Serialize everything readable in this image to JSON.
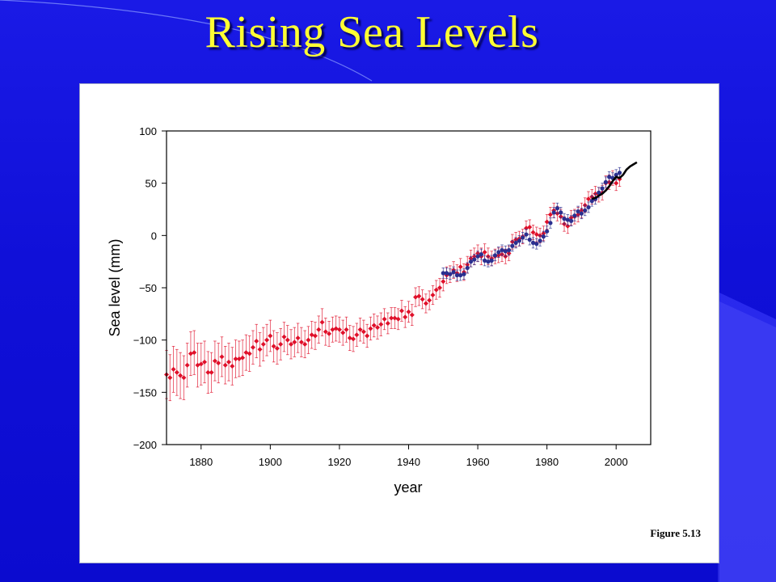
{
  "slide": {
    "title": "Rising Sea Levels",
    "figure_caption": "Figure 5.13"
  },
  "colors": {
    "background": "#1010d8",
    "title": "#ffff33",
    "tide_gauge": "#e0102a",
    "tide_gauge_alt": "#2a2f8f",
    "satellite": "#000000"
  },
  "chart_data": {
    "type": "scatter",
    "title": "",
    "xlabel": "year",
    "ylabel": "Sea level (mm)",
    "xlim": [
      1870,
      2010
    ],
    "ylim": [
      -200,
      100
    ],
    "xticks": [
      1880,
      1900,
      1920,
      1940,
      1960,
      1980,
      2000
    ],
    "yticks": [
      100,
      50,
      0,
      -50,
      -100,
      -150,
      -200
    ],
    "ytick_labels": [
      "100",
      "50",
      "0",
      "−50",
      "−100",
      "−150",
      "−200"
    ],
    "series": [
      {
        "color": "#e0102a",
        "marker": "diamond",
        "error_bars": true,
        "points": [
          [
            1870,
            -133,
            23
          ],
          [
            1871,
            -136,
            22
          ],
          [
            1872,
            -128,
            22
          ],
          [
            1873,
            -131,
            22
          ],
          [
            1874,
            -134,
            22
          ],
          [
            1875,
            -136,
            21
          ],
          [
            1876,
            -124,
            21
          ],
          [
            1877,
            -113,
            21
          ],
          [
            1878,
            -112,
            21
          ],
          [
            1879,
            -124,
            21
          ],
          [
            1880,
            -123,
            20
          ],
          [
            1881,
            -121,
            20
          ],
          [
            1882,
            -131,
            20
          ],
          [
            1883,
            -131,
            19
          ],
          [
            1884,
            -120,
            19
          ],
          [
            1885,
            -122,
            19
          ],
          [
            1886,
            -116,
            19
          ],
          [
            1887,
            -124,
            18
          ],
          [
            1888,
            -121,
            18
          ],
          [
            1889,
            -125,
            18
          ],
          [
            1890,
            -118,
            18
          ],
          [
            1891,
            -118,
            17
          ],
          [
            1892,
            -117,
            17
          ],
          [
            1893,
            -112,
            17
          ],
          [
            1894,
            -113,
            17
          ],
          [
            1895,
            -107,
            16
          ],
          [
            1896,
            -101,
            16
          ],
          [
            1897,
            -109,
            16
          ],
          [
            1898,
            -104,
            16
          ],
          [
            1899,
            -100,
            15
          ],
          [
            1900,
            -96,
            15
          ],
          [
            1901,
            -106,
            15
          ],
          [
            1902,
            -108,
            15
          ],
          [
            1903,
            -104,
            15
          ],
          [
            1904,
            -97,
            14
          ],
          [
            1905,
            -100,
            14
          ],
          [
            1906,
            -104,
            14
          ],
          [
            1907,
            -102,
            14
          ],
          [
            1908,
            -98,
            14
          ],
          [
            1909,
            -102,
            14
          ],
          [
            1910,
            -104,
            13
          ],
          [
            1911,
            -100,
            13
          ],
          [
            1912,
            -95,
            13
          ],
          [
            1913,
            -96,
            13
          ],
          [
            1914,
            -90,
            13
          ],
          [
            1915,
            -83,
            13
          ],
          [
            1916,
            -92,
            13
          ],
          [
            1917,
            -94,
            12
          ],
          [
            1918,
            -90,
            12
          ],
          [
            1919,
            -89,
            12
          ],
          [
            1920,
            -90,
            12
          ],
          [
            1921,
            -93,
            12
          ],
          [
            1922,
            -90,
            12
          ],
          [
            1923,
            -98,
            12
          ],
          [
            1924,
            -99,
            12
          ],
          [
            1925,
            -95,
            11
          ],
          [
            1926,
            -90,
            11
          ],
          [
            1927,
            -92,
            11
          ],
          [
            1928,
            -96,
            11
          ],
          [
            1929,
            -89,
            11
          ],
          [
            1930,
            -86,
            11
          ],
          [
            1931,
            -88,
            11
          ],
          [
            1932,
            -85,
            11
          ],
          [
            1933,
            -80,
            10
          ],
          [
            1934,
            -84,
            10
          ],
          [
            1935,
            -79,
            10
          ],
          [
            1936,
            -79,
            10
          ],
          [
            1937,
            -80,
            10
          ],
          [
            1938,
            -72,
            10
          ],
          [
            1939,
            -78,
            10
          ],
          [
            1940,
            -73,
            10
          ],
          [
            1941,
            -76,
            10
          ],
          [
            1942,
            -59,
            9
          ],
          [
            1943,
            -58,
            9
          ],
          [
            1944,
            -61,
            9
          ],
          [
            1945,
            -65,
            9
          ],
          [
            1946,
            -62,
            9
          ],
          [
            1947,
            -57,
            9
          ],
          [
            1948,
            -52,
            9
          ],
          [
            1949,
            -50,
            9
          ],
          [
            1950,
            -44,
            9
          ],
          [
            1951,
            -38,
            8
          ],
          [
            1952,
            -37,
            8
          ],
          [
            1953,
            -33,
            8
          ],
          [
            1954,
            -36,
            8
          ],
          [
            1955,
            -30,
            8
          ],
          [
            1956,
            -35,
            8
          ],
          [
            1957,
            -28,
            8
          ],
          [
            1958,
            -22,
            8
          ],
          [
            1959,
            -20,
            8
          ],
          [
            1960,
            -17,
            8
          ],
          [
            1961,
            -20,
            8
          ],
          [
            1962,
            -16,
            8
          ],
          [
            1963,
            -20,
            8
          ],
          [
            1964,
            -22,
            7
          ],
          [
            1965,
            -20,
            7
          ],
          [
            1966,
            -19,
            7
          ],
          [
            1967,
            -18,
            7
          ],
          [
            1968,
            -20,
            7
          ],
          [
            1969,
            -17,
            7
          ],
          [
            1970,
            -6,
            7
          ],
          [
            1971,
            -4,
            7
          ],
          [
            1972,
            -3,
            7
          ],
          [
            1973,
            -1,
            7
          ],
          [
            1974,
            7,
            7
          ],
          [
            1975,
            8,
            7
          ],
          [
            1976,
            3,
            7
          ],
          [
            1977,
            1,
            7
          ],
          [
            1978,
            0,
            7
          ],
          [
            1979,
            2,
            7
          ],
          [
            1980,
            13,
            7
          ],
          [
            1981,
            20,
            7
          ],
          [
            1982,
            24,
            7
          ],
          [
            1983,
            21,
            7
          ],
          [
            1984,
            18,
            7
          ],
          [
            1985,
            11,
            7
          ],
          [
            1986,
            9,
            7
          ],
          [
            1987,
            17,
            7
          ],
          [
            1988,
            18,
            7
          ],
          [
            1989,
            20,
            7
          ],
          [
            1990,
            24,
            7
          ],
          [
            1991,
            29,
            7
          ],
          [
            1992,
            35,
            7
          ],
          [
            1993,
            37,
            7
          ],
          [
            1994,
            40,
            7
          ],
          [
            1995,
            39,
            7
          ],
          [
            1996,
            41,
            7
          ],
          [
            1997,
            50,
            7
          ],
          [
            1998,
            51,
            7
          ],
          [
            1999,
            55,
            7
          ],
          [
            2000,
            50,
            7
          ],
          [
            2001,
            54,
            7
          ]
        ]
      },
      {
        "color": "#2a2f8f",
        "marker": "circle",
        "error_bars": true,
        "points": [
          [
            1950,
            -36,
            5
          ],
          [
            1951,
            -36,
            5
          ],
          [
            1952,
            -37,
            5
          ],
          [
            1953,
            -35,
            5
          ],
          [
            1954,
            -38,
            5
          ],
          [
            1955,
            -38,
            5
          ],
          [
            1956,
            -37,
            5
          ],
          [
            1957,
            -31,
            5
          ],
          [
            1958,
            -25,
            5
          ],
          [
            1959,
            -23,
            5
          ],
          [
            1960,
            -20,
            5
          ],
          [
            1961,
            -18,
            5
          ],
          [
            1962,
            -24,
            5
          ],
          [
            1963,
            -25,
            5
          ],
          [
            1964,
            -24,
            5
          ],
          [
            1965,
            -19,
            5
          ],
          [
            1966,
            -16,
            5
          ],
          [
            1967,
            -14,
            5
          ],
          [
            1968,
            -15,
            5
          ],
          [
            1969,
            -14,
            5
          ],
          [
            1970,
            -10,
            5
          ],
          [
            1971,
            -7,
            5
          ],
          [
            1972,
            -5,
            5
          ],
          [
            1973,
            -2,
            5
          ],
          [
            1974,
            1,
            5
          ],
          [
            1975,
            -4,
            5
          ],
          [
            1976,
            -7,
            5
          ],
          [
            1977,
            -8,
            5
          ],
          [
            1978,
            -5,
            5
          ],
          [
            1979,
            -1,
            5
          ],
          [
            1980,
            4,
            5
          ],
          [
            1981,
            12,
            5
          ],
          [
            1982,
            22,
            5
          ],
          [
            1983,
            26,
            5
          ],
          [
            1984,
            22,
            5
          ],
          [
            1985,
            16,
            5
          ],
          [
            1986,
            15,
            5
          ],
          [
            1987,
            14,
            5
          ],
          [
            1988,
            19,
            5
          ],
          [
            1989,
            23,
            5
          ],
          [
            1990,
            21,
            5
          ],
          [
            1991,
            24,
            5
          ],
          [
            1992,
            27,
            5
          ],
          [
            1993,
            33,
            5
          ],
          [
            1994,
            35,
            5
          ],
          [
            1995,
            41,
            5
          ],
          [
            1996,
            45,
            5
          ],
          [
            1997,
            51,
            5
          ],
          [
            1998,
            56,
            5
          ],
          [
            1999,
            55,
            5
          ],
          [
            2000,
            58,
            5
          ],
          [
            2001,
            60,
            5
          ]
        ]
      },
      {
        "color": "#000000",
        "marker": "line",
        "error_bars": false,
        "points": [
          [
            1993,
            35
          ],
          [
            1994,
            36
          ],
          [
            1995,
            38
          ],
          [
            1996,
            40
          ],
          [
            1997,
            43
          ],
          [
            1998,
            47
          ],
          [
            1999,
            52
          ],
          [
            2000,
            56
          ],
          [
            2001,
            55
          ],
          [
            2002,
            58
          ],
          [
            2003,
            63
          ],
          [
            2004,
            66
          ],
          [
            2005,
            68
          ],
          [
            2006,
            70
          ]
        ]
      }
    ],
    "grid": false,
    "legend": "none"
  }
}
